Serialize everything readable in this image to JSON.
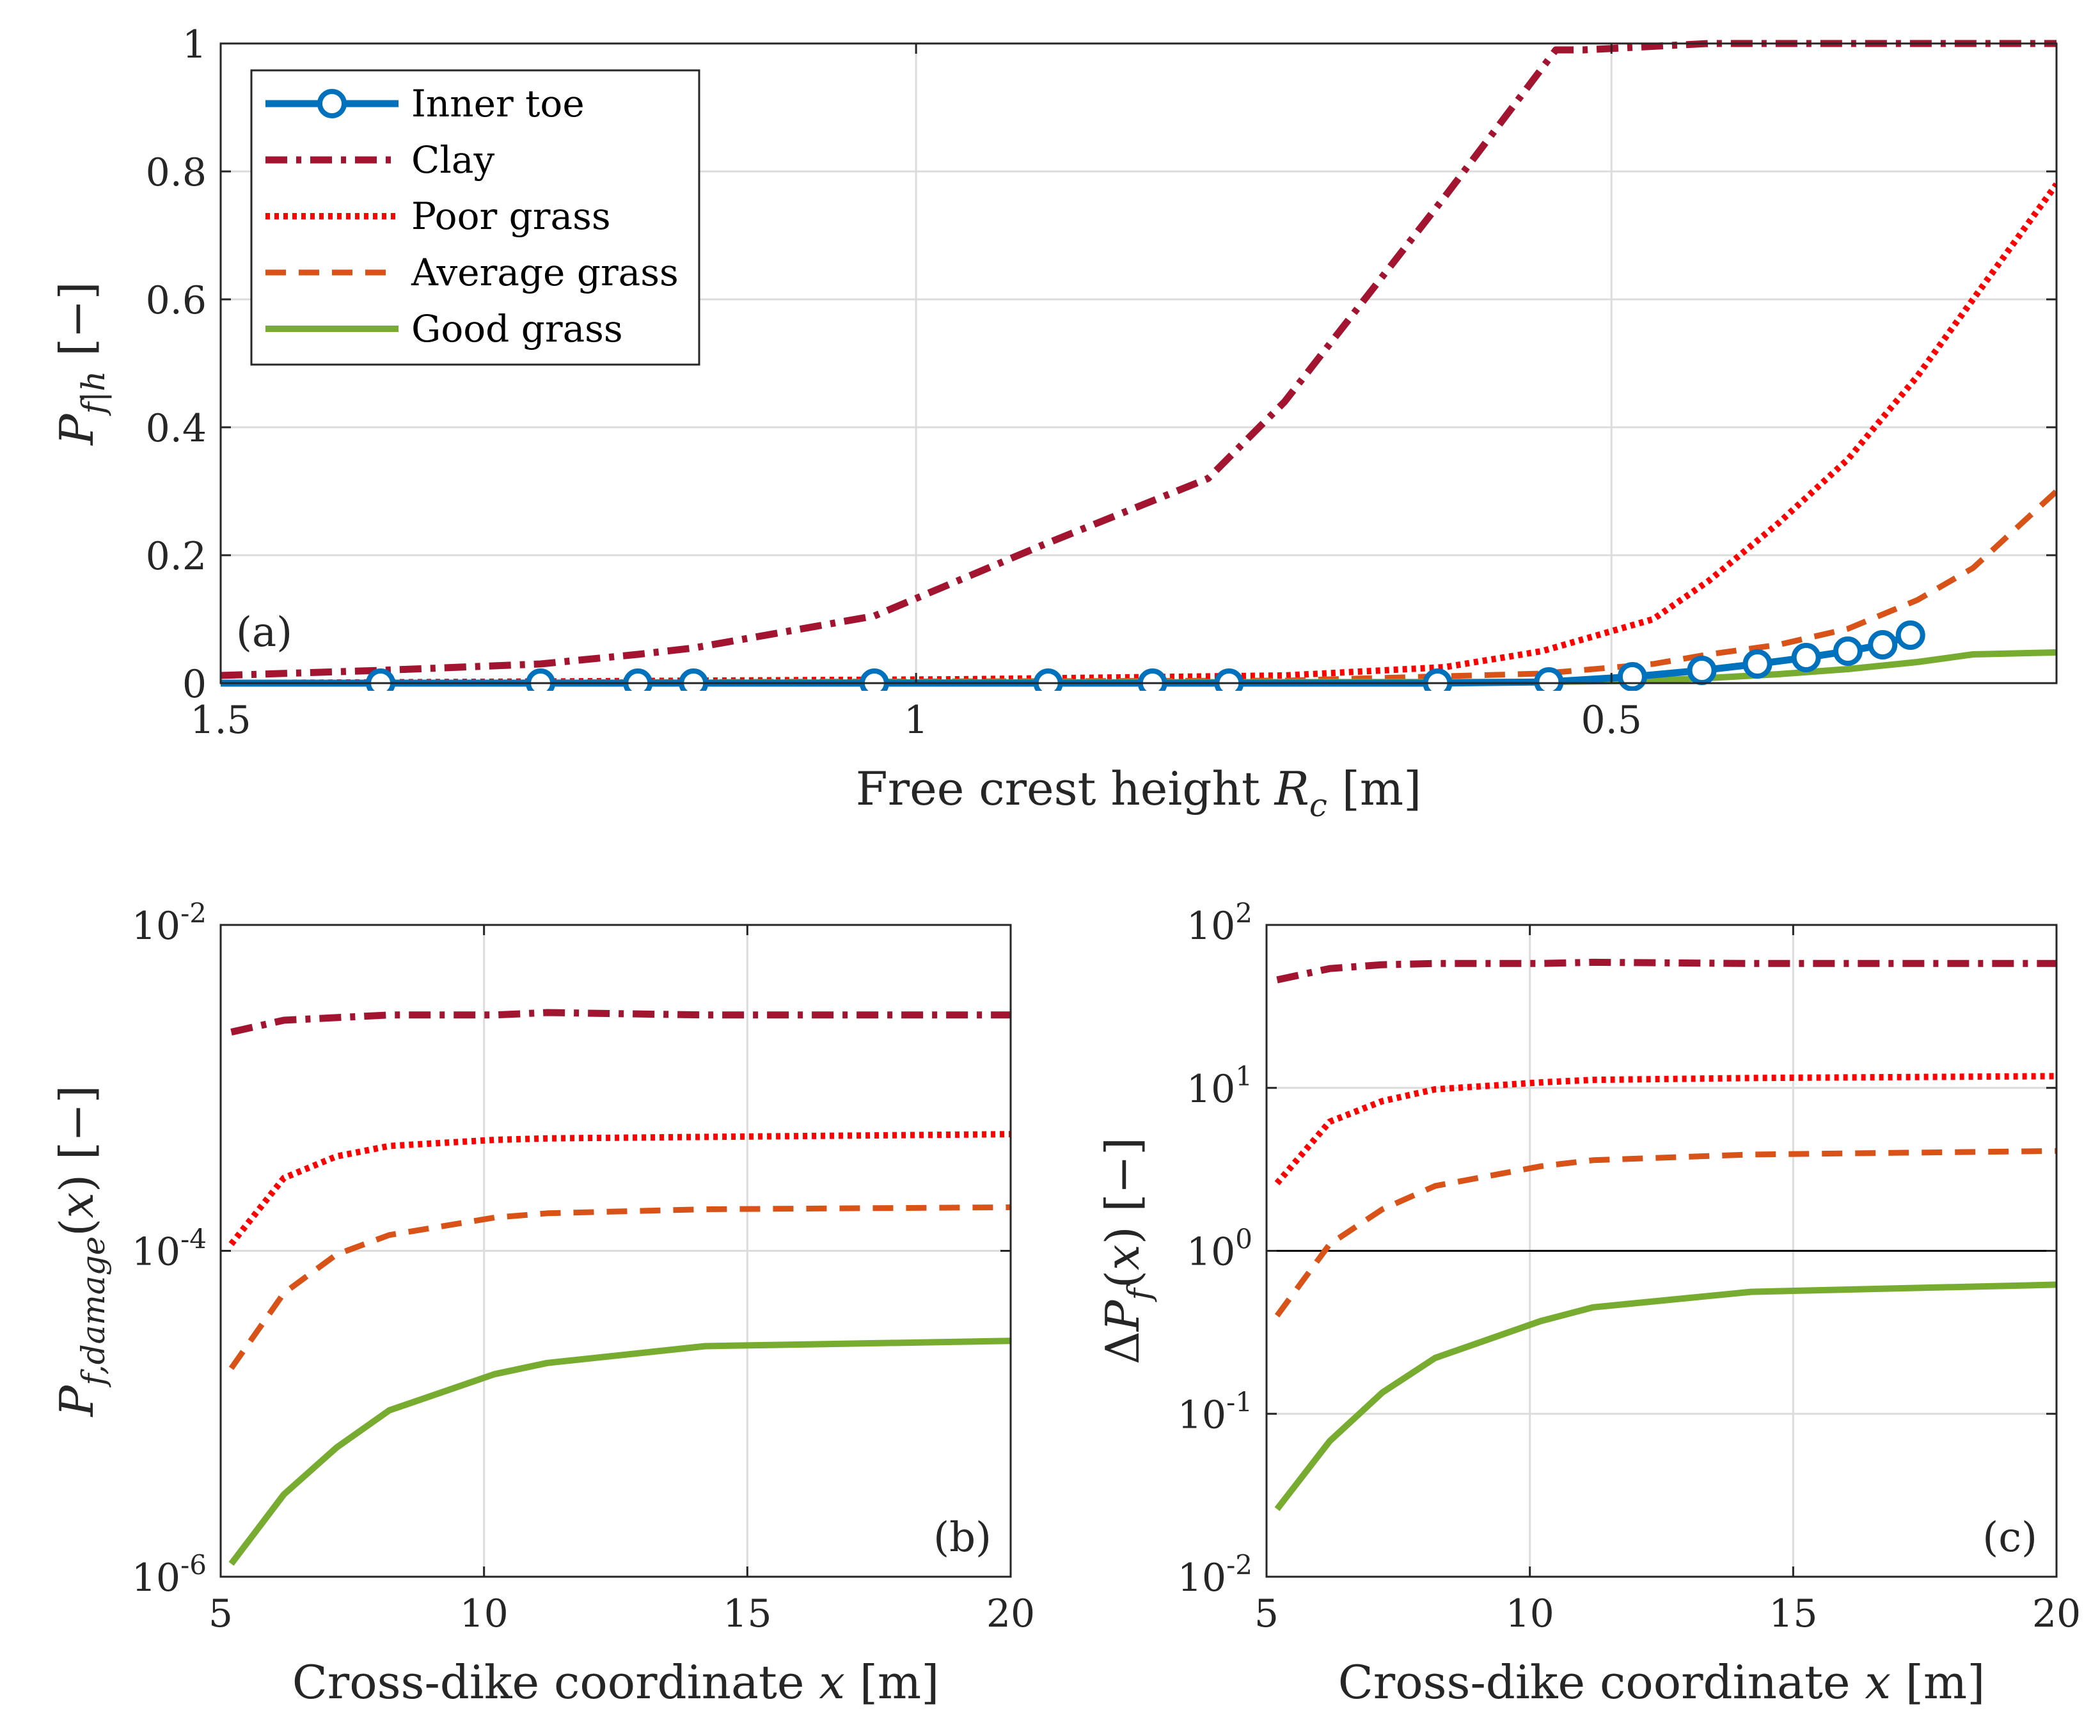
{
  "colors": {
    "inner_toe": "#0072BD",
    "clay": "#A2142F",
    "poor_grass": "#FF0000",
    "average_grass": "#D95319",
    "good_grass": "#77AC30"
  },
  "legend": [
    "Inner toe",
    "Clay",
    "Poor grass",
    "Average grass",
    "Good grass"
  ],
  "chart_data": [
    {
      "id": "a",
      "type": "line",
      "panel_label": "(a)",
      "xlabel": "Free crest height R_c [m]",
      "ylabel": "P_f|h [−]",
      "xlim": [
        1.5,
        0.18
      ],
      "x_reversed": true,
      "ylim": [
        0,
        1
      ],
      "xticks": [
        {
          "v": 1.5,
          "label": "1.5"
        },
        {
          "v": 1.0,
          "label": "1"
        },
        {
          "v": 0.5,
          "label": "0.5"
        }
      ],
      "yticks": [
        {
          "v": 0,
          "label": "0"
        },
        {
          "v": 0.2,
          "label": "0.2"
        },
        {
          "v": 0.4,
          "label": "0.4"
        },
        {
          "v": 0.6,
          "label": "0.6"
        },
        {
          "v": 0.8,
          "label": "0.8"
        },
        {
          "v": 1.0,
          "label": "1"
        }
      ],
      "grid": true,
      "legend_position": "top-left",
      "series": [
        {
          "name": "Clay",
          "key": "clay",
          "x": [
            1.5,
            1.385,
            1.27,
            1.2,
            1.16,
            1.03,
            0.91,
            0.79,
            0.735,
            0.62,
            0.54,
            0.52,
            0.43,
            0.18
          ],
          "y": [
            0.012,
            0.02,
            0.03,
            0.045,
            0.055,
            0.105,
            0.215,
            0.32,
            0.44,
            0.76,
            0.99,
            0.99,
            1.0,
            1.0
          ]
        },
        {
          "name": "Poor grass",
          "key": "poor_grass",
          "x": [
            1.5,
            0.97,
            0.735,
            0.62,
            0.55,
            0.47,
            0.43,
            0.38,
            0.33,
            0.28,
            0.24,
            0.18
          ],
          "y": [
            0.0,
            0.006,
            0.012,
            0.025,
            0.05,
            0.1,
            0.16,
            0.25,
            0.35,
            0.48,
            0.6,
            0.78
          ]
        },
        {
          "name": "Average grass",
          "key": "average_grass",
          "x": [
            1.5,
            0.735,
            0.55,
            0.47,
            0.43,
            0.38,
            0.33,
            0.28,
            0.24,
            0.18
          ],
          "y": [
            0.0,
            0.004,
            0.015,
            0.03,
            0.045,
            0.06,
            0.085,
            0.13,
            0.18,
            0.3
          ]
        },
        {
          "name": "Good grass",
          "key": "good_grass",
          "x": [
            1.5,
            0.55,
            0.47,
            0.43,
            0.38,
            0.33,
            0.28,
            0.24,
            0.18
          ],
          "y": [
            0.0,
            0.002,
            0.004,
            0.008,
            0.014,
            0.022,
            0.033,
            0.045,
            0.048
          ]
        },
        {
          "name": "Inner toe",
          "key": "inner_toe",
          "markers": true,
          "x": [
            1.5,
            1.385,
            1.27,
            1.2,
            1.16,
            1.03,
            0.905,
            0.83,
            0.775,
            0.625,
            0.545,
            0.485,
            0.435,
            0.395,
            0.36,
            0.33,
            0.305,
            0.285
          ],
          "y": [
            0.0,
            0.0,
            0.0,
            0.0,
            0.0,
            0.0,
            0.0,
            0.0,
            0.0,
            0.0,
            0.002,
            0.01,
            0.02,
            0.03,
            0.04,
            0.05,
            0.06,
            0.075
          ]
        }
      ]
    },
    {
      "id": "b",
      "type": "line",
      "panel_label": "(b)",
      "xlabel": "Cross-dike coordinate x [m]",
      "ylabel": "P_f,damage(x) [−]",
      "xlim": [
        5,
        20
      ],
      "ylim": [
        1e-06,
        0.01
      ],
      "yscale": "log",
      "xticks": [
        {
          "v": 5,
          "label": "5"
        },
        {
          "v": 10,
          "label": "10"
        },
        {
          "v": 15,
          "label": "15"
        },
        {
          "v": 20,
          "label": "20"
        }
      ],
      "yticks": [
        {
          "v": 1e-06,
          "base": "10",
          "exp": "-6"
        },
        {
          "v": 0.0001,
          "base": "10",
          "exp": "-4"
        },
        {
          "v": 0.01,
          "base": "10",
          "exp": "-2"
        }
      ],
      "grid": true,
      "series": [
        {
          "name": "Clay",
          "key": "clay",
          "x": [
            5.2,
            6.2,
            7.2,
            8.2,
            10.2,
            11.2,
            14.2,
            20
          ],
          "y": [
            0.0022,
            0.0026,
            0.0027,
            0.0028,
            0.0028,
            0.0029,
            0.0028,
            0.0028
          ]
        },
        {
          "name": "Poor grass",
          "key": "poor_grass",
          "x": [
            5.2,
            6.2,
            7.2,
            8.2,
            10.2,
            11.2,
            14.2,
            20
          ],
          "y": [
            0.00011,
            0.00028,
            0.00038,
            0.00044,
            0.00048,
            0.00049,
            0.0005,
            0.00052
          ]
        },
        {
          "name": "Average grass",
          "key": "average_grass",
          "x": [
            5.2,
            6.2,
            7.2,
            8.2,
            10.2,
            11.2,
            14.2,
            20
          ],
          "y": [
            1.9e-05,
            5.5e-05,
            9.5e-05,
            0.000125,
            0.00016,
            0.00017,
            0.00018,
            0.000185
          ]
        },
        {
          "name": "Good grass",
          "key": "good_grass",
          "x": [
            5.2,
            6.2,
            7.2,
            8.2,
            10.2,
            11.2,
            14.2,
            20
          ],
          "y": [
            1.2e-06,
            3.2e-06,
            6.2e-06,
            1.05e-05,
            1.75e-05,
            2.05e-05,
            2.6e-05,
            2.8e-05
          ]
        }
      ]
    },
    {
      "id": "c",
      "type": "line",
      "panel_label": "(c)",
      "xlabel": "Cross-dike coordinate x [m]",
      "ylabel": "ΔP_f(x) [−]",
      "xlim": [
        5,
        20
      ],
      "ylim": [
        0.01,
        100.0
      ],
      "yscale": "log",
      "xticks": [
        {
          "v": 5,
          "label": "5"
        },
        {
          "v": 10,
          "label": "10"
        },
        {
          "v": 15,
          "label": "15"
        },
        {
          "v": 20,
          "label": "20"
        }
      ],
      "yticks": [
        {
          "v": 0.01,
          "base": "10",
          "exp": "-2"
        },
        {
          "v": 0.1,
          "base": "10",
          "exp": "-1"
        },
        {
          "v": 1,
          "base": "10",
          "exp": "0"
        },
        {
          "v": 10,
          "base": "10",
          "exp": "1"
        },
        {
          "v": 100,
          "base": "10",
          "exp": "2"
        }
      ],
      "grid": true,
      "reference_line": 1,
      "series": [
        {
          "name": "Clay",
          "key": "clay",
          "x": [
            5.2,
            6.2,
            7.2,
            8.2,
            10.2,
            11.2,
            14.2,
            20
          ],
          "y": [
            46,
            54,
            57,
            58,
            58,
            59,
            58,
            58
          ]
        },
        {
          "name": "Poor grass",
          "key": "poor_grass",
          "x": [
            5.2,
            6.2,
            7.2,
            8.2,
            10.2,
            11.2,
            14.2,
            20
          ],
          "y": [
            2.6,
            6.2,
            8.3,
            9.8,
            10.8,
            11.2,
            11.5,
            11.8
          ]
        },
        {
          "name": "Average grass",
          "key": "average_grass",
          "x": [
            5.2,
            6.2,
            7.2,
            8.2,
            10.2,
            11.2,
            14.2,
            20
          ],
          "y": [
            0.4,
            1.1,
            1.8,
            2.5,
            3.3,
            3.6,
            3.9,
            4.1
          ]
        },
        {
          "name": "Good grass",
          "key": "good_grass",
          "x": [
            5.2,
            6.2,
            7.2,
            8.2,
            10.2,
            11.2,
            14.2,
            20
          ],
          "y": [
            0.026,
            0.068,
            0.135,
            0.22,
            0.37,
            0.45,
            0.56,
            0.62
          ]
        }
      ]
    }
  ]
}
